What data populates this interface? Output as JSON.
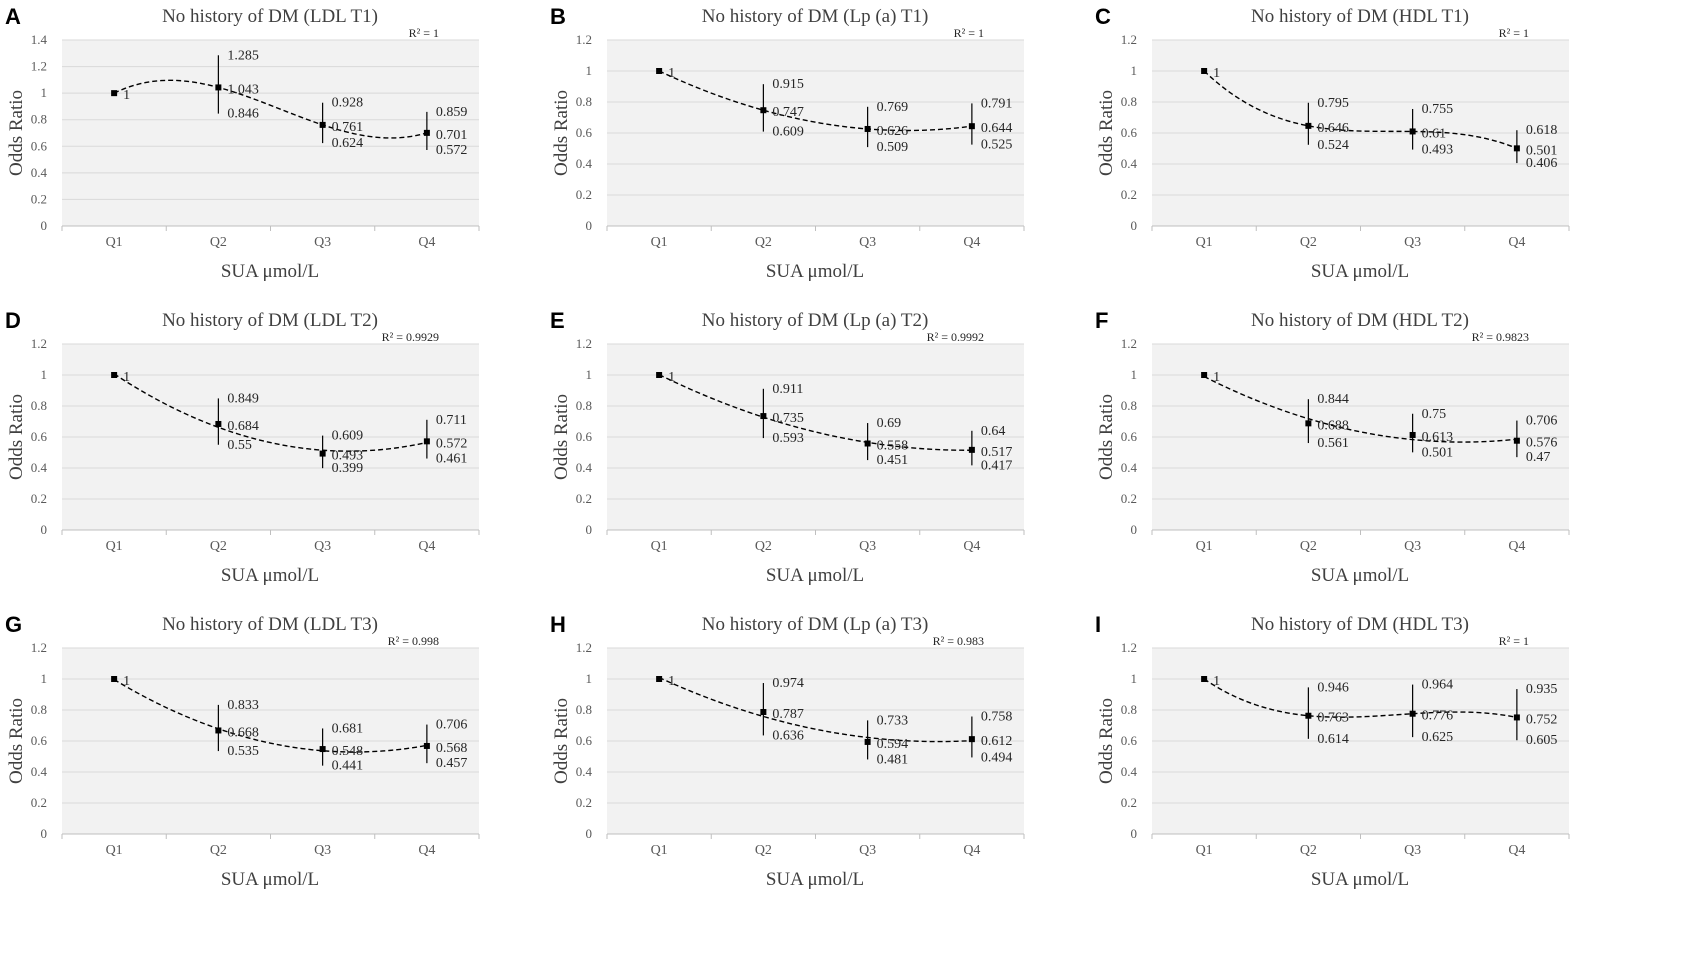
{
  "chart_data": [
    {
      "type": "line",
      "letter": "A",
      "title": "No history of DM (LDL T1)",
      "xlabel": "SUA μmol/L",
      "ylabel": "Odds Ratio",
      "r2": "R² = 1",
      "categories": [
        "Q1",
        "Q2",
        "Q3",
        "Q4"
      ],
      "yticks": [
        "0",
        "0.2",
        "0.4",
        "0.6",
        "0.8",
        "1",
        "1.2",
        "1.4"
      ],
      "ylim": [
        0,
        1.4
      ],
      "values": [
        1,
        1.043,
        0.761,
        0.701
      ],
      "upper": [
        null,
        1.285,
        0.928,
        0.859
      ],
      "lower": [
        null,
        0.846,
        0.624,
        0.572
      ],
      "value_labels": [
        "1",
        "1.043",
        "0.761",
        "0.701"
      ],
      "upper_labels": [
        "",
        "1.285",
        "0.928",
        "0.859"
      ],
      "lower_labels": [
        "",
        "0.846",
        "0.624",
        "0.572"
      ]
    },
    {
      "type": "line",
      "letter": "B",
      "title": "No history of DM (Lp (a) T1)",
      "xlabel": "SUA μmol/L",
      "ylabel": "Odds Ratio",
      "r2": "R² = 1",
      "categories": [
        "Q1",
        "Q2",
        "Q3",
        "Q4"
      ],
      "yticks": [
        "0",
        "0.2",
        "0.4",
        "0.6",
        "0.8",
        "1",
        "1.2"
      ],
      "ylim": [
        0,
        1.2
      ],
      "values": [
        1,
        0.747,
        0.626,
        0.644
      ],
      "upper": [
        null,
        0.915,
        0.769,
        0.791
      ],
      "lower": [
        null,
        0.609,
        0.509,
        0.525
      ],
      "value_labels": [
        "1",
        "0.747",
        "0.626",
        "0.644"
      ],
      "upper_labels": [
        "",
        "0.915",
        "0.769",
        "0.791"
      ],
      "lower_labels": [
        "",
        "0.609",
        "0.509",
        "0.525"
      ]
    },
    {
      "type": "line",
      "letter": "C",
      "title": "No history of DM (HDL T1)",
      "xlabel": "SUA μmol/L",
      "ylabel": "Odds Ratio",
      "r2": "R² = 1",
      "categories": [
        "Q1",
        "Q2",
        "Q3",
        "Q4"
      ],
      "yticks": [
        "0",
        "0.2",
        "0.4",
        "0.6",
        "0.8",
        "1",
        "1.2"
      ],
      "ylim": [
        0,
        1.2
      ],
      "values": [
        1,
        0.646,
        0.61,
        0.501
      ],
      "upper": [
        null,
        0.795,
        0.755,
        0.618
      ],
      "lower": [
        null,
        0.524,
        0.493,
        0.406
      ],
      "value_labels": [
        "1",
        "0.646",
        "0.61",
        "0.501"
      ],
      "upper_labels": [
        "",
        "0.795",
        "0.755",
        "0.618"
      ],
      "lower_labels": [
        "",
        "0.524",
        "0.493",
        "0.406"
      ]
    },
    {
      "type": "line",
      "letter": "D",
      "title": "No history of DM (LDL T2)",
      "xlabel": "SUA μmol/L",
      "ylabel": "Odds Ratio",
      "r2": "R² = 0.9929",
      "categories": [
        "Q1",
        "Q2",
        "Q3",
        "Q4"
      ],
      "yticks": [
        "0",
        "0.2",
        "0.4",
        "0.6",
        "0.8",
        "1",
        "1.2"
      ],
      "ylim": [
        0,
        1.2
      ],
      "values": [
        1,
        0.684,
        0.493,
        0.572
      ],
      "upper": [
        null,
        0.849,
        0.609,
        0.711
      ],
      "lower": [
        null,
        0.55,
        0.399,
        0.461
      ],
      "value_labels": [
        "1",
        "0.684",
        "0.493",
        "0.572"
      ],
      "upper_labels": [
        "",
        "0.849",
        "0.609",
        "0.711"
      ],
      "lower_labels": [
        "",
        "0.55",
        "0.399",
        "0.461"
      ]
    },
    {
      "type": "line",
      "letter": "E",
      "title": "No history of DM (Lp (a) T2)",
      "xlabel": "SUA μmol/L",
      "ylabel": "Odds Ratio",
      "r2": "R² = 0.9992",
      "categories": [
        "Q1",
        "Q2",
        "Q3",
        "Q4"
      ],
      "yticks": [
        "0",
        "0.2",
        "0.4",
        "0.6",
        "0.8",
        "1",
        "1.2"
      ],
      "ylim": [
        0,
        1.2
      ],
      "values": [
        1,
        0.735,
        0.558,
        0.517
      ],
      "upper": [
        null,
        0.911,
        0.69,
        0.64
      ],
      "lower": [
        null,
        0.593,
        0.451,
        0.417
      ],
      "value_labels": [
        "1",
        "0.735",
        "0.558",
        "0.517"
      ],
      "upper_labels": [
        "",
        "0.911",
        "0.69",
        "0.64"
      ],
      "lower_labels": [
        "",
        "0.593",
        "0.451",
        "0.417"
      ]
    },
    {
      "type": "line",
      "letter": "F",
      "title": "No history of DM (HDL T2)",
      "xlabel": "SUA μmol/L",
      "ylabel": "Odds Ratio",
      "r2": "R² = 0.9823",
      "categories": [
        "Q1",
        "Q2",
        "Q3",
        "Q4"
      ],
      "yticks": [
        "0",
        "0.2",
        "0.4",
        "0.6",
        "0.8",
        "1",
        "1.2"
      ],
      "ylim": [
        0,
        1.2
      ],
      "values": [
        1,
        0.688,
        0.613,
        0.576
      ],
      "upper": [
        null,
        0.844,
        0.75,
        0.706
      ],
      "lower": [
        null,
        0.561,
        0.501,
        0.47
      ],
      "value_labels": [
        "1",
        "0.688",
        "0.613",
        "0.576"
      ],
      "upper_labels": [
        "",
        "0.844",
        "0.75",
        "0.706"
      ],
      "lower_labels": [
        "",
        "0.561",
        "0.501",
        "0.47"
      ]
    },
    {
      "type": "line",
      "letter": "G",
      "title": "No history of DM (LDL T3)",
      "xlabel": "SUA μmol/L",
      "ylabel": "Odds Ratio",
      "r2": "R² = 0.998",
      "categories": [
        "Q1",
        "Q2",
        "Q3",
        "Q4"
      ],
      "yticks": [
        "0",
        "0.2",
        "0.4",
        "0.6",
        "0.8",
        "1",
        "1.2"
      ],
      "ylim": [
        0,
        1.2
      ],
      "values": [
        1,
        0.668,
        0.548,
        0.568
      ],
      "upper": [
        null,
        0.833,
        0.681,
        0.706
      ],
      "lower": [
        null,
        0.535,
        0.441,
        0.457
      ],
      "value_labels": [
        "1",
        "0.668",
        "0.548",
        "0.568"
      ],
      "upper_labels": [
        "",
        "0.833",
        "0.681",
        "0.706"
      ],
      "lower_labels": [
        "",
        "0.535",
        "0.441",
        "0.457"
      ]
    },
    {
      "type": "line",
      "letter": "H",
      "title": "No history of DM (Lp (a) T3)",
      "xlabel": "SUA μmol/L",
      "ylabel": "Odds Ratio",
      "r2": "R² = 0.983",
      "categories": [
        "Q1",
        "Q2",
        "Q3",
        "Q4"
      ],
      "yticks": [
        "0",
        "0.2",
        "0.4",
        "0.6",
        "0.8",
        "1",
        "1.2"
      ],
      "ylim": [
        0,
        1.2
      ],
      "values": [
        1,
        0.787,
        0.594,
        0.612
      ],
      "upper": [
        null,
        0.974,
        0.733,
        0.758
      ],
      "lower": [
        null,
        0.636,
        0.481,
        0.494
      ],
      "value_labels": [
        "1",
        "0.787",
        "0.594",
        "0.612"
      ],
      "upper_labels": [
        "",
        "0.974",
        "0.733",
        "0.758"
      ],
      "lower_labels": [
        "",
        "0.636",
        "0.481",
        "0.494"
      ]
    },
    {
      "type": "line",
      "letter": "I",
      "title": "No history of DM (HDL T3)",
      "xlabel": "SUA μmol/L",
      "ylabel": "Odds Ratio",
      "r2": "R² = 1",
      "categories": [
        "Q1",
        "Q2",
        "Q3",
        "Q4"
      ],
      "yticks": [
        "0",
        "0.2",
        "0.4",
        "0.6",
        "0.8",
        "1",
        "1.2"
      ],
      "ylim": [
        0,
        1.2
      ],
      "values": [
        1,
        0.763,
        0.776,
        0.752
      ],
      "upper": [
        null,
        0.946,
        0.964,
        0.935
      ],
      "lower": [
        null,
        0.614,
        0.625,
        0.605
      ],
      "value_labels": [
        "1",
        "0.763",
        "0.776",
        "0.752"
      ],
      "upper_labels": [
        "",
        "0.946",
        "0.964",
        "0.935"
      ],
      "lower_labels": [
        "",
        "0.614",
        "0.625",
        "0.605"
      ]
    }
  ]
}
